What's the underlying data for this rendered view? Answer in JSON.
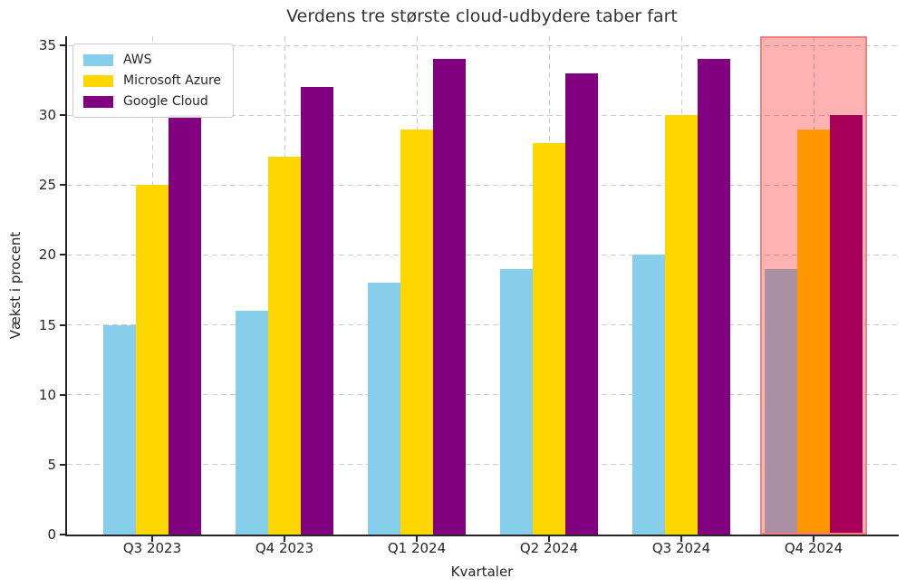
{
  "chart_data": {
    "type": "bar",
    "title": "Verdens tre største cloud-udbydere taber fart",
    "xlabel": "Kvartaler",
    "ylabel": "Vækst i procent",
    "categories": [
      "Q3 2023",
      "Q4 2023",
      "Q1 2024",
      "Q2 2024",
      "Q3 2024",
      "Q4 2024"
    ],
    "series": [
      {
        "name": "AWS",
        "color": "#87CEEB",
        "values": [
          15,
          16,
          18,
          19,
          20,
          19
        ]
      },
      {
        "name": "Microsoft Azure",
        "color": "#FFD700",
        "values": [
          25,
          27,
          29,
          28,
          30,
          29
        ]
      },
      {
        "name": "Google Cloud",
        "color": "#800080",
        "values": [
          30,
          32,
          34,
          33,
          34,
          30
        ]
      }
    ],
    "y_ticks": [
      0,
      5,
      10,
      15,
      20,
      25,
      30,
      35
    ],
    "ylim": [
      0,
      35.65
    ],
    "grid": true,
    "legend_position": "upper-left",
    "highlight": {
      "category": "Q4 2024",
      "fill_color": "#FF0000",
      "fill_opacity": 0.3,
      "border_color": "#F5807D"
    }
  },
  "styles": {
    "axis_color": "#262626",
    "grid_color": "#cccccc",
    "text_color": "#262626",
    "title_color": "#333333",
    "background": "#ffffff"
  }
}
